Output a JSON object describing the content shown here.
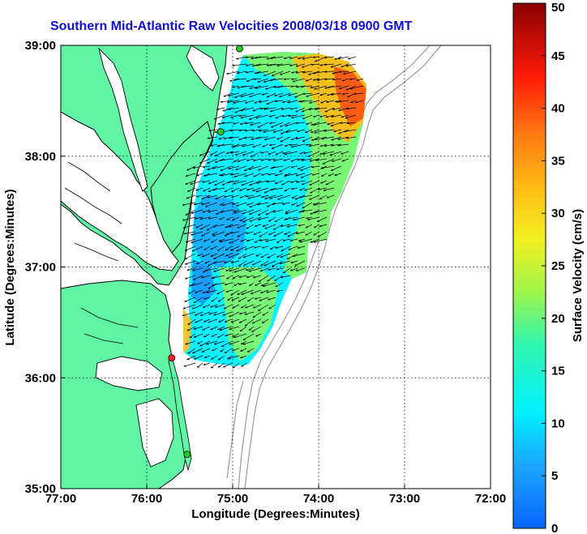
{
  "chart_data": {
    "type": "map",
    "title": "Southern Mid-Atlantic Raw Velocities 2008/03/18 0900 GMT",
    "xlabel": "Longitude (Degrees:Minutes)",
    "ylabel": "Latitude (Degrees:Minutes)",
    "xlim": [
      -77,
      -72
    ],
    "ylim": [
      35,
      39
    ],
    "x_ticks": [
      {
        "value": -77,
        "label": "77:00"
      },
      {
        "value": -76,
        "label": "76:00"
      },
      {
        "value": -75,
        "label": "75:00"
      },
      {
        "value": -74,
        "label": "74:00"
      },
      {
        "value": -73,
        "label": "73:00"
      },
      {
        "value": -72,
        "label": "72:00"
      }
    ],
    "y_ticks": [
      {
        "value": 35,
        "label": "35:00"
      },
      {
        "value": 36,
        "label": "36:00"
      },
      {
        "value": 37,
        "label": "37:00"
      },
      {
        "value": 38,
        "label": "38:00"
      },
      {
        "value": 39,
        "label": "39:00"
      }
    ],
    "grid": true,
    "colorbar": {
      "label": "Surface Velocity (cm/s)",
      "range": [
        0,
        50
      ],
      "ticks": [
        {
          "value": 0,
          "label": "0"
        },
        {
          "value": 5,
          "label": "5"
        },
        {
          "value": 10,
          "label": "10"
        },
        {
          "value": 15,
          "label": "15"
        },
        {
          "value": 20,
          "label": "20"
        },
        {
          "value": 25,
          "label": "25"
        },
        {
          "value": 30,
          "label": "30"
        },
        {
          "value": 35,
          "label": "35"
        },
        {
          "value": 40,
          "label": "40"
        },
        {
          "value": 45,
          "label": "45"
        },
        {
          "value": 50,
          "label": "50"
        }
      ]
    },
    "stations": [
      {
        "lon": -74.92,
        "lat": 38.97,
        "color": "#22cc22"
      },
      {
        "lon": -75.14,
        "lat": 38.22,
        "color": "#22cc22"
      },
      {
        "lon": -75.71,
        "lat": 36.18,
        "color": "#ff2020"
      },
      {
        "lon": -75.53,
        "lat": 35.31,
        "color": "#22cc22"
      }
    ],
    "colors": {
      "land": "#5ff5a5",
      "water": "#ffffff",
      "coast": "#000000",
      "bathymetry": "#999999",
      "grid": "#000000"
    }
  }
}
